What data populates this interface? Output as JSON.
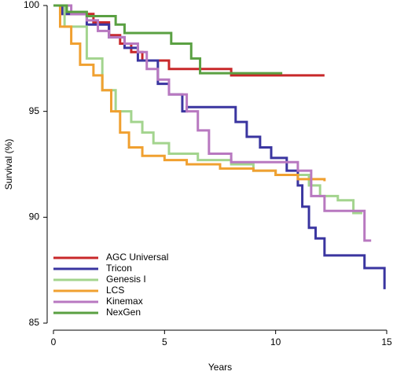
{
  "chart_data": {
    "type": "line",
    "drawstyle": "steps-post",
    "xlabel": "Years",
    "ylabel": "Survival (%)",
    "xlim": [
      0,
      15
    ],
    "ylim": [
      85,
      100
    ],
    "xticks": [
      0,
      5,
      10,
      15
    ],
    "yticks": [
      85,
      90,
      95,
      100
    ],
    "grid": false,
    "legend": "lower left",
    "series": [
      {
        "name": "AGC Universal",
        "color": "#c8282a",
        "x": [
          0,
          0.3,
          1.8,
          2.5,
          3.0,
          3.5,
          4.0,
          5.2,
          8.0,
          12.2
        ],
        "values": [
          100,
          99.6,
          99.2,
          98.6,
          98.2,
          97.8,
          97.4,
          97.0,
          96.7,
          96.7
        ]
      },
      {
        "name": "Tricon",
        "color": "#3a35a0",
        "x": [
          0,
          0.4,
          1.5,
          2.5,
          3.2,
          3.8,
          4.7,
          5.2,
          5.8,
          6.0,
          8.2,
          8.7,
          9.3,
          9.8,
          10.5,
          11.0,
          11.2,
          11.5,
          11.8,
          12.2,
          14.0,
          14.9
        ],
        "values": [
          100,
          99.6,
          99.1,
          98.5,
          98.0,
          97.4,
          96.3,
          95.8,
          95.0,
          95.2,
          94.5,
          93.8,
          93.3,
          92.8,
          92.2,
          91.5,
          90.5,
          89.5,
          89.0,
          88.2,
          87.6,
          86.6
        ]
      },
      {
        "name": "Genesis I",
        "color": "#a3d48e",
        "x": [
          0,
          0.5,
          1.5,
          2.2,
          2.8,
          3.5,
          4.0,
          4.5,
          5.2,
          6.5,
          8.0,
          9.0,
          10.0,
          11.5,
          12.0,
          12.8,
          13.5,
          13.9
        ],
        "values": [
          100,
          99.0,
          97.5,
          96.0,
          95.0,
          94.5,
          94.0,
          93.5,
          93.0,
          92.7,
          92.5,
          92.2,
          92.0,
          91.5,
          91.0,
          90.8,
          90.2,
          90.2
        ]
      },
      {
        "name": "LCS",
        "color": "#f0a030",
        "x": [
          0,
          0.3,
          0.8,
          1.2,
          1.8,
          2.2,
          2.6,
          3.0,
          3.4,
          4.0,
          5.0,
          6.0,
          7.5,
          9.0,
          10.0,
          11.0,
          12.2
        ],
        "values": [
          100,
          99.0,
          98.2,
          97.2,
          96.7,
          96.0,
          95.0,
          94.0,
          93.3,
          92.9,
          92.7,
          92.5,
          92.3,
          92.2,
          92.0,
          91.8,
          91.7
        ]
      },
      {
        "name": "Kinemax",
        "color": "#b878c0",
        "x": [
          0,
          0.8,
          1.5,
          2.0,
          2.5,
          3.2,
          3.8,
          4.2,
          4.7,
          5.2,
          6.0,
          6.5,
          7.0,
          8.0,
          10.0,
          11.0,
          11.6,
          12.2,
          14.0,
          14.3
        ],
        "values": [
          100,
          99.6,
          99.3,
          98.8,
          98.5,
          98.2,
          97.8,
          97.0,
          96.5,
          95.8,
          95.0,
          94.1,
          93.0,
          92.6,
          92.6,
          92.2,
          91.0,
          90.3,
          88.9,
          88.9
        ]
      },
      {
        "name": "NexGen",
        "color": "#5aa042",
        "x": [
          0,
          0.6,
          1.5,
          2.8,
          3.2,
          5.3,
          6.2,
          6.6,
          10.3
        ],
        "values": [
          100,
          99.7,
          99.5,
          99.1,
          98.7,
          98.2,
          97.5,
          96.8,
          96.8
        ]
      }
    ]
  }
}
